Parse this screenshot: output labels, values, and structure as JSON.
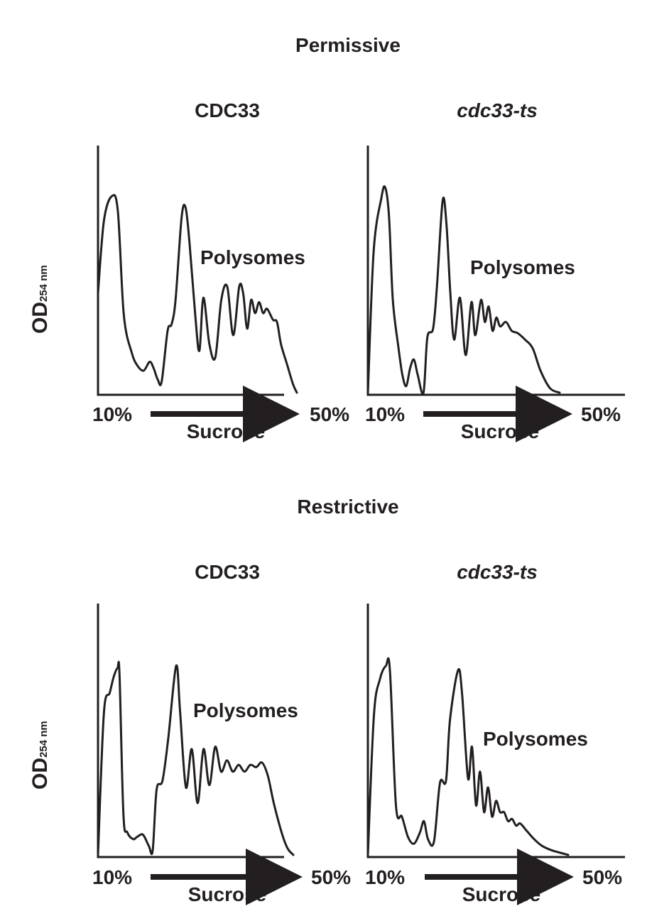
{
  "sections": [
    {
      "title": "Permissive"
    },
    {
      "title": "Restrictive"
    }
  ],
  "ylabel": {
    "main": "OD",
    "sub": "254 nm"
  },
  "axis": {
    "start_label": "10%",
    "end_label": "50%",
    "gradient_label": "Sucrose"
  },
  "annotation": "Polysomes",
  "chart_data": [
    {
      "type": "line",
      "section": "Permissive",
      "title": "CDC33",
      "title_italic": false,
      "xlabel": "Sucrose",
      "ylabel": "OD254 nm",
      "x_range": [
        "10%",
        "50%"
      ],
      "annotations": [
        "Polysomes"
      ],
      "trace": [
        [
          0,
          0.45
        ],
        [
          3,
          0.78
        ],
        [
          7,
          0.89
        ],
        [
          10,
          0.82
        ],
        [
          13,
          0.35
        ],
        [
          17,
          0.18
        ],
        [
          20,
          0.12
        ],
        [
          23,
          0.1
        ],
        [
          26,
          0.14
        ],
        [
          28,
          0.11
        ],
        [
          30,
          0.06
        ],
        [
          32,
          0.05
        ],
        [
          35,
          0.28
        ],
        [
          37,
          0.31
        ],
        [
          39,
          0.42
        ],
        [
          42,
          0.79
        ],
        [
          44,
          0.84
        ],
        [
          46,
          0.68
        ],
        [
          49,
          0.34
        ],
        [
          51,
          0.19
        ],
        [
          53,
          0.43
        ],
        [
          56,
          0.22
        ],
        [
          59,
          0.16
        ],
        [
          62,
          0.42
        ],
        [
          65,
          0.48
        ],
        [
          68,
          0.26
        ],
        [
          71,
          0.48
        ],
        [
          73,
          0.45
        ],
        [
          75,
          0.29
        ],
        [
          77,
          0.42
        ],
        [
          79,
          0.36
        ],
        [
          81,
          0.41
        ],
        [
          83,
          0.36
        ],
        [
          85,
          0.38
        ],
        [
          88,
          0.33
        ],
        [
          90,
          0.32
        ],
        [
          92,
          0.22
        ],
        [
          95,
          0.13
        ],
        [
          98,
          0.04
        ],
        [
          100,
          0.0
        ]
      ],
      "xlim": [
        0,
        100
      ],
      "ylim": [
        0,
        1
      ]
    },
    {
      "type": "line",
      "section": "Permissive",
      "title": "cdc33-ts",
      "title_italic": true,
      "xlabel": "Sucrose",
      "ylabel": "OD254 nm",
      "x_range": [
        "10%",
        "50%"
      ],
      "annotations": [
        "Polysomes"
      ],
      "trace": [
        [
          0,
          0.0
        ],
        [
          3,
          0.64
        ],
        [
          7,
          0.88
        ],
        [
          9,
          0.93
        ],
        [
          11,
          0.8
        ],
        [
          13,
          0.42
        ],
        [
          16,
          0.2
        ],
        [
          18,
          0.08
        ],
        [
          20,
          0.03
        ],
        [
          22,
          0.11
        ],
        [
          24,
          0.15
        ],
        [
          26,
          0.08
        ],
        [
          29,
          0.0
        ],
        [
          31,
          0.25
        ],
        [
          34,
          0.29
        ],
        [
          36,
          0.48
        ],
        [
          39,
          0.87
        ],
        [
          41,
          0.76
        ],
        [
          43,
          0.45
        ],
        [
          45,
          0.24
        ],
        [
          48,
          0.43
        ],
        [
          51,
          0.17
        ],
        [
          54,
          0.41
        ],
        [
          56,
          0.26
        ],
        [
          59,
          0.42
        ],
        [
          61,
          0.32
        ],
        [
          63,
          0.39
        ],
        [
          65,
          0.28
        ],
        [
          67,
          0.34
        ],
        [
          69,
          0.3
        ],
        [
          72,
          0.32
        ],
        [
          75,
          0.28
        ],
        [
          78,
          0.27
        ],
        [
          82,
          0.24
        ],
        [
          86,
          0.2
        ],
        [
          90,
          0.1
        ],
        [
          95,
          0.02
        ],
        [
          100,
          0.0
        ]
      ],
      "xlim": [
        0,
        100
      ],
      "ylim": [
        0,
        1
      ]
    },
    {
      "type": "line",
      "section": "Restrictive",
      "title": "CDC33",
      "title_italic": false,
      "xlabel": "Sucrose",
      "ylabel": "OD254 nm",
      "x_range": [
        "10%",
        "50%"
      ],
      "annotations": [
        "Polysomes"
      ],
      "trace": [
        [
          0,
          0.0
        ],
        [
          3,
          0.63
        ],
        [
          6,
          0.72
        ],
        [
          8,
          0.79
        ],
        [
          10,
          0.83
        ],
        [
          11,
          0.8
        ],
        [
          13,
          0.18
        ],
        [
          15,
          0.1
        ],
        [
          18,
          0.07
        ],
        [
          20,
          0.08
        ],
        [
          23,
          0.09
        ],
        [
          26,
          0.04
        ],
        [
          28,
          0.02
        ],
        [
          30,
          0.29
        ],
        [
          33,
          0.33
        ],
        [
          36,
          0.52
        ],
        [
          40,
          0.84
        ],
        [
          42,
          0.64
        ],
        [
          45,
          0.3
        ],
        [
          48,
          0.47
        ],
        [
          51,
          0.23
        ],
        [
          54,
          0.47
        ],
        [
          57,
          0.31
        ],
        [
          60,
          0.48
        ],
        [
          63,
          0.37
        ],
        [
          66,
          0.42
        ],
        [
          69,
          0.37
        ],
        [
          72,
          0.4
        ],
        [
          75,
          0.37
        ],
        [
          78,
          0.4
        ],
        [
          81,
          0.39
        ],
        [
          84,
          0.41
        ],
        [
          87,
          0.35
        ],
        [
          90,
          0.23
        ],
        [
          94,
          0.1
        ],
        [
          97,
          0.03
        ],
        [
          100,
          0.0
        ]
      ],
      "xlim": [
        0,
        100
      ],
      "ylim": [
        0,
        1
      ]
    },
    {
      "type": "line",
      "section": "Restrictive",
      "title": "cdc33-ts",
      "title_italic": true,
      "xlabel": "Sucrose",
      "ylabel": "OD254 nm",
      "x_range": [
        "10%",
        "50%"
      ],
      "annotations": [
        "Polysomes"
      ],
      "trace": [
        [
          0,
          0.0
        ],
        [
          3,
          0.62
        ],
        [
          6,
          0.78
        ],
        [
          9,
          0.84
        ],
        [
          11,
          0.82
        ],
        [
          14,
          0.22
        ],
        [
          17,
          0.17
        ],
        [
          20,
          0.08
        ],
        [
          23,
          0.05
        ],
        [
          26,
          0.1
        ],
        [
          28,
          0.15
        ],
        [
          30,
          0.07
        ],
        [
          33,
          0.06
        ],
        [
          36,
          0.32
        ],
        [
          39,
          0.33
        ],
        [
          41,
          0.6
        ],
        [
          45,
          0.82
        ],
        [
          47,
          0.72
        ],
        [
          50,
          0.34
        ],
        [
          52,
          0.48
        ],
        [
          54,
          0.22
        ],
        [
          56,
          0.37
        ],
        [
          58,
          0.19
        ],
        [
          60,
          0.3
        ],
        [
          62,
          0.17
        ],
        [
          64,
          0.24
        ],
        [
          66,
          0.19
        ],
        [
          68,
          0.19
        ],
        [
          70,
          0.15
        ],
        [
          72,
          0.16
        ],
        [
          74,
          0.13
        ],
        [
          76,
          0.14
        ],
        [
          79,
          0.11
        ],
        [
          83,
          0.07
        ],
        [
          87,
          0.04
        ],
        [
          92,
          0.02
        ],
        [
          100,
          0.0
        ]
      ],
      "xlim": [
        0,
        100
      ],
      "ylim": [
        0,
        1
      ]
    }
  ]
}
